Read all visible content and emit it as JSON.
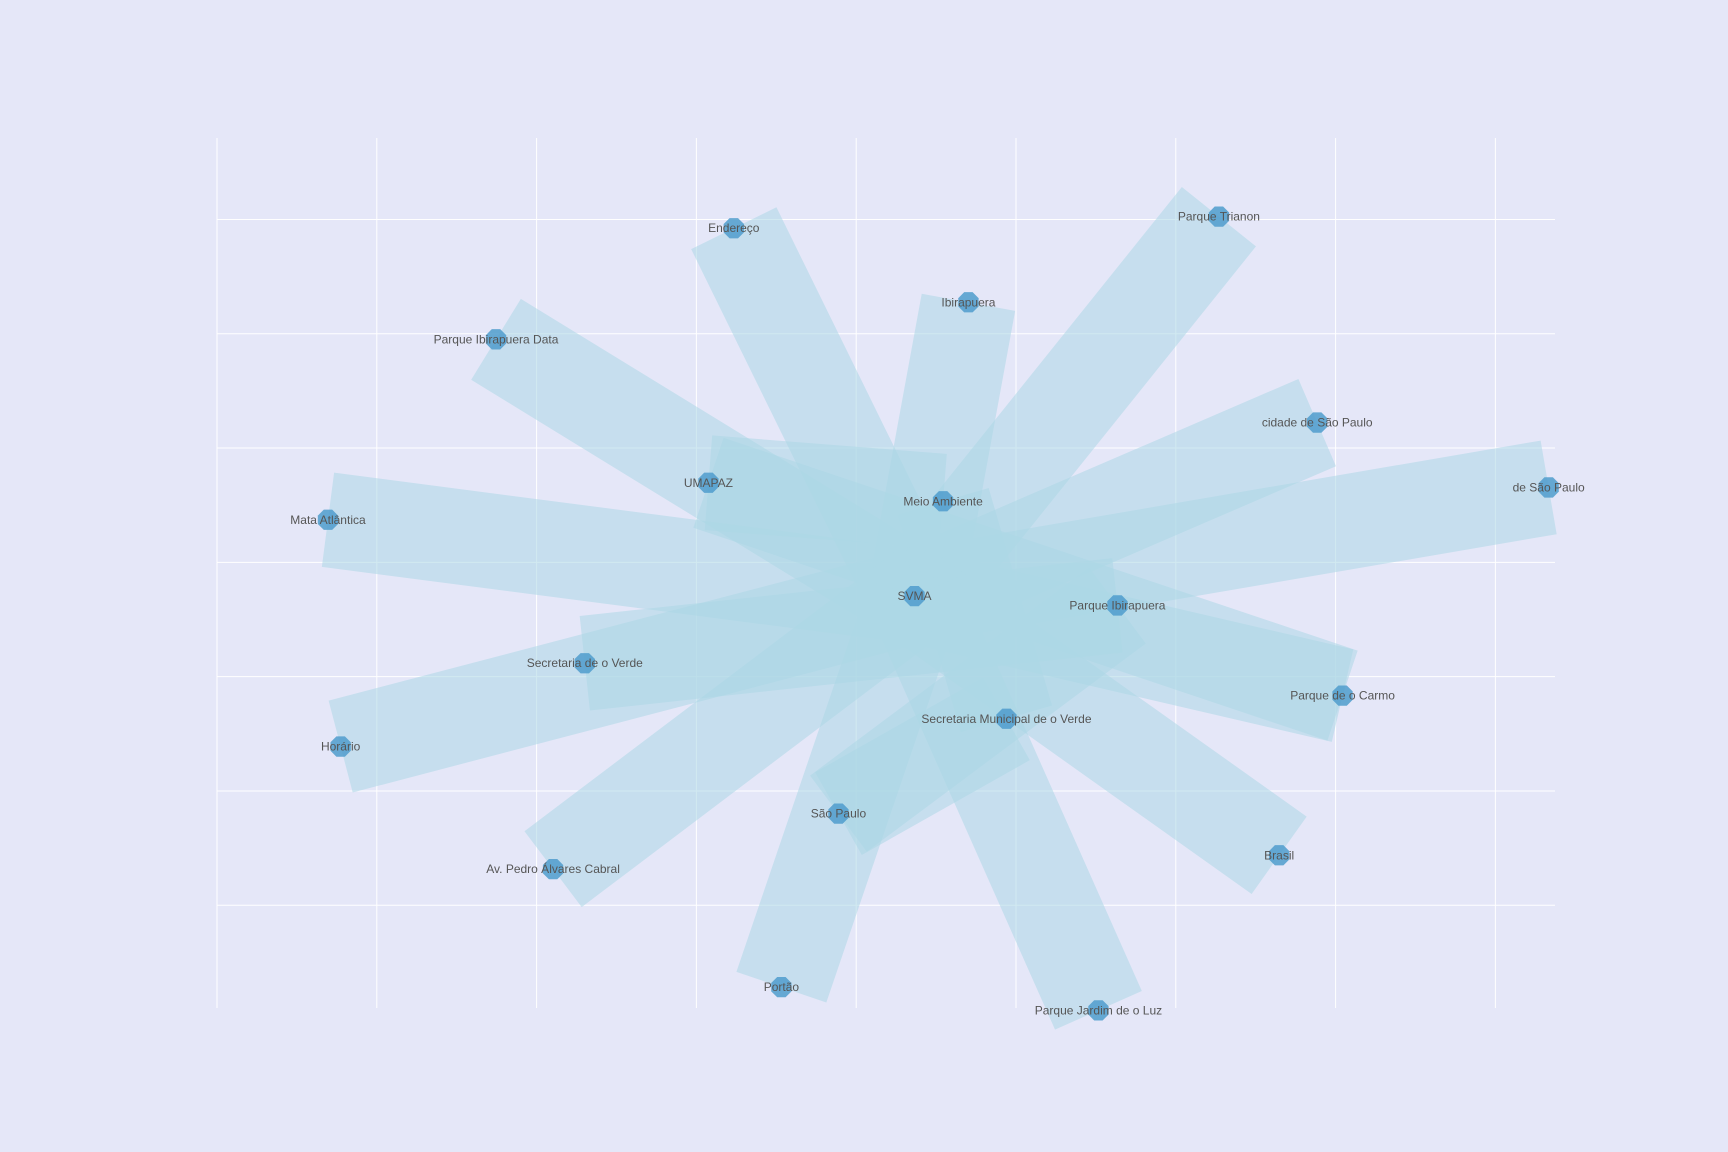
{
  "chart_data": {
    "type": "network",
    "colors": {
      "background": "#e5e7f8",
      "grid": "#ffffff",
      "edge": "#add8e6",
      "node": "#4f9ccc"
    },
    "grid": true,
    "axes_visible": false,
    "xlim": [
      -1.1,
      1.01
    ],
    "ylim": [
      -0.89,
      0.99
    ],
    "x_gridlines": [
      -1.1,
      -0.848,
      -0.596,
      -0.344,
      -0.092,
      0.16,
      0.412,
      0.664,
      0.916
    ],
    "y_gridlines": [
      0.814,
      0.567,
      0.32,
      0.073,
      -0.174,
      -0.421,
      -0.668
    ],
    "nodes": [
      {
        "id": "SVMA",
        "label": "SVMA",
        "x": 0.0,
        "y": 0.0
      },
      {
        "id": "meio_ambiente",
        "label": "Meio Ambiente",
        "x": 0.045,
        "y": 0.205
      },
      {
        "id": "parque_ibirapuera",
        "label": "Parque Ibirapuera",
        "x": 0.32,
        "y": -0.02
      },
      {
        "id": "secretaria_municipal",
        "label": "Secretaria Municipal de o Verde",
        "x": 0.145,
        "y": -0.265
      },
      {
        "id": "sao_paulo",
        "label": "São Paulo",
        "x": -0.12,
        "y": -0.47
      },
      {
        "id": "secretaria_verde",
        "label": "Secretaria de o Verde",
        "x": -0.52,
        "y": -0.145
      },
      {
        "id": "umapaz",
        "label": "UMAPAZ",
        "x": -0.325,
        "y": 0.245
      },
      {
        "id": "ibirapuera",
        "label": "Ibirapuera",
        "x": 0.085,
        "y": 0.635
      },
      {
        "id": "endereco",
        "label": "Endereço",
        "x": -0.285,
        "y": 0.795
      },
      {
        "id": "parque_trianon",
        "label": "Parque Trianon",
        "x": 0.48,
        "y": 0.82
      },
      {
        "id": "parque_ibirapuera_data",
        "label": "Parque Ibirapuera Data",
        "x": -0.66,
        "y": 0.555
      },
      {
        "id": "cidade_sao_paulo",
        "label": "cidade de São Paulo",
        "x": 0.635,
        "y": 0.375
      },
      {
        "id": "de_sao_paulo",
        "label": "de São Paulo",
        "x": 1.0,
        "y": 0.235
      },
      {
        "id": "mata_atlantica",
        "label": "Mata Atlântica",
        "x": -0.925,
        "y": 0.165
      },
      {
        "id": "horario",
        "label": "Horário",
        "x": -0.905,
        "y": -0.325
      },
      {
        "id": "parque_carmo",
        "label": "Parque de o Carmo",
        "x": 0.675,
        "y": -0.215
      },
      {
        "id": "av_pedro",
        "label": "Av. Pedro Álvares Cabral",
        "x": -0.57,
        "y": -0.59
      },
      {
        "id": "brasil",
        "label": "Brasil",
        "x": 0.575,
        "y": -0.56
      },
      {
        "id": "portao",
        "label": "Portão",
        "x": -0.21,
        "y": -0.845
      },
      {
        "id": "parque_jardim_luz",
        "label": "Parque Jardim de o Luz",
        "x": 0.29,
        "y": -0.895
      }
    ],
    "edges": [
      [
        "SVMA",
        "parque_trianon"
      ],
      [
        "SVMA",
        "endereco"
      ],
      [
        "SVMA",
        "ibirapuera"
      ],
      [
        "SVMA",
        "parque_ibirapuera_data"
      ],
      [
        "SVMA",
        "cidade_sao_paulo"
      ],
      [
        "SVMA",
        "de_sao_paulo"
      ],
      [
        "SVMA",
        "mata_atlantica"
      ],
      [
        "SVMA",
        "horario"
      ],
      [
        "SVMA",
        "parque_carmo"
      ],
      [
        "SVMA",
        "av_pedro"
      ],
      [
        "SVMA",
        "brasil"
      ],
      [
        "SVMA",
        "portao"
      ],
      [
        "SVMA",
        "parque_jardim_luz"
      ],
      [
        "meio_ambiente",
        "umapaz"
      ],
      [
        "meio_ambiente",
        "secretaria_municipal"
      ],
      [
        "parque_ibirapuera",
        "secretaria_verde"
      ],
      [
        "umapaz",
        "parque_carmo"
      ],
      [
        "secretaria_municipal",
        "sao_paulo"
      ],
      [
        "sao_paulo",
        "parque_ibirapuera"
      ]
    ]
  }
}
